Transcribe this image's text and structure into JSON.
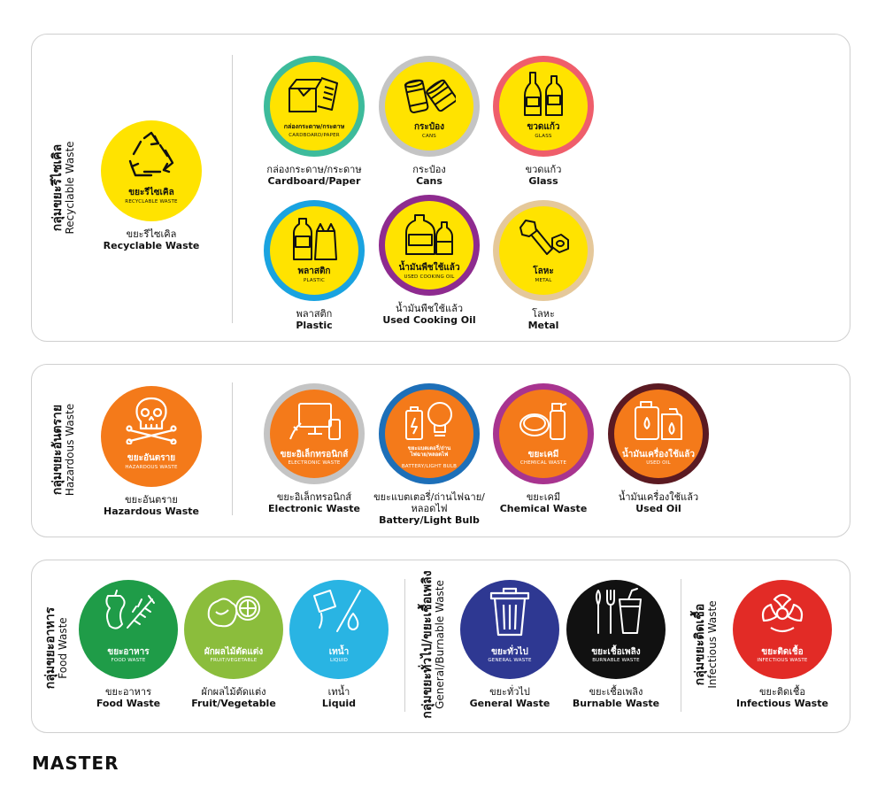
{
  "groups": {
    "recyclable": {
      "label_th": "กลุ่มขยะรีไซเคิล",
      "label_en": "Recyclable Waste"
    },
    "hazardous": {
      "label_th": "กลุ่มขยะอันตราย",
      "label_en": "Hazardous Waste"
    },
    "food": {
      "label_th": "กลุ่มขยะอาหาร",
      "label_en": "Food Waste"
    },
    "general": {
      "label_th": "กลุ่มขยะทั่วไป/ขยะเชื้อเพลิง",
      "label_en": "General/Burnable Waste"
    },
    "infectious": {
      "label_th": "กลุ่มขยะติดเชื้อ",
      "label_en": "Infectious Waste"
    }
  },
  "items": {
    "recyclable": {
      "badge_th": "ขยะรีไซเคิล",
      "badge_en": "RECYCLABLE WASTE",
      "cap_th": "ขยะรีไซเคิล",
      "cap_en": "Recyclable Waste",
      "fill": "#ffe300",
      "ring": "#ffe300",
      "icon": "recycle-icon"
    },
    "cardboard": {
      "badge_th": "กล่องกระดาษ/กระดาษ",
      "badge_en": "CARDBOARD/PAPER",
      "cap_th": "กล่องกระดาษ/กระดาษ",
      "cap_en": "Cardboard/Paper",
      "fill": "#ffe300",
      "ring": "#3dbb9b",
      "icon": "cardboard-box-icon"
    },
    "cans": {
      "badge_th": "กระป๋อง",
      "badge_en": "CANS",
      "cap_th": "กระป๋อง",
      "cap_en": "Cans",
      "fill": "#ffe300",
      "ring": "#c4c4c4",
      "icon": "cans-icon"
    },
    "glass": {
      "badge_th": "ขวดแก้ว",
      "badge_en": "GLASS",
      "cap_th": "ขวดแก้ว",
      "cap_en": "Glass",
      "fill": "#ffe300",
      "ring": "#ef5e6b",
      "icon": "glass-bottle-icon"
    },
    "plastic": {
      "badge_th": "พลาสติก",
      "badge_en": "PLASTIC",
      "cap_th": "พลาสติก",
      "cap_en": "Plastic",
      "fill": "#ffe300",
      "ring": "#1aa3e0",
      "icon": "plastic-bottle-icon"
    },
    "cooking_oil": {
      "badge_th": "น้ำมันพืชใช้แล้ว",
      "badge_en": "USED COOKING OIL",
      "cap_th": "น้ำมันพืชใช้แล้ว",
      "cap_en": "Used Cooking Oil",
      "fill": "#ffe300",
      "ring": "#8e2b8f",
      "icon": "oil-bottle-icon"
    },
    "metal": {
      "badge_th": "โลหะ",
      "badge_en": "METAL",
      "cap_th": "โลหะ",
      "cap_en": "Metal",
      "fill": "#ffe300",
      "ring": "#e5c89a",
      "icon": "bolt-nut-icon"
    },
    "hazardous": {
      "badge_th": "ขยะอันตราย",
      "badge_en": "HAZARDOUS WASTE",
      "cap_th": "ขยะอันตราย",
      "cap_en": "Hazardous Waste",
      "fill": "#f47a1a",
      "ring": "#f47a1a",
      "icon": "skull-crossbones-icon"
    },
    "electronic": {
      "badge_th": "ขยะอิเล็กทรอนิกส์",
      "badge_en": "ELECTRONIC WASTE",
      "cap_th": "ขยะอิเล็กทรอนิกส์",
      "cap_en": "Electronic Waste",
      "fill": "#f47a1a",
      "ring": "#c4c4c4",
      "icon": "electronics-icon"
    },
    "battery": {
      "badge_th": "ขยะแบตเตอรี่/ถ่านไฟฉาย/หลอดไฟ",
      "badge_en": "BATTERY/LIGHT BULB",
      "cap_th": "ขยะแบตเตอรี่/ถ่านไฟฉาย/",
      "cap_th2": "หลอดไฟ",
      "cap_en": "Battery/Light Bulb",
      "fill": "#f47a1a",
      "ring": "#1d6fb8",
      "icon": "battery-bulb-icon"
    },
    "chemical": {
      "badge_th": "ขยะเคมี",
      "badge_en": "CHEMICAL WASTE",
      "cap_th": "ขยะเคมี",
      "cap_en": "Chemical Waste",
      "fill": "#f47a1a",
      "ring": "#a8348f",
      "icon": "chemical-spray-icon"
    },
    "used_oil": {
      "badge_th": "น้ำมันเครื่องใช้แล้ว",
      "badge_en": "USED OIL",
      "cap_th": "น้ำมันเครื่องใช้แล้ว",
      "cap_en": "Used Oil",
      "fill": "#f47a1a",
      "ring": "#5b1a22",
      "icon": "oil-can-icon"
    },
    "food": {
      "badge_th": "ขยะอาหาร",
      "badge_en": "FOOD WASTE",
      "cap_th": "ขยะอาหาร",
      "cap_en": "Food Waste",
      "fill": "#1f9c48",
      "ring": "#1f9c48",
      "icon": "apple-core-fishbone-icon"
    },
    "fruit": {
      "badge_th": "ผักผลไม้ตัดแต่ง",
      "badge_en": "FRUIT/VEGETABLE",
      "cap_th": "ผักผลไม้ตัดแต่ง",
      "cap_en": "Fruit/Vegetable",
      "fill": "#8bbd3c",
      "ring": "#8bbd3c",
      "icon": "fruit-vegetable-icon"
    },
    "liquid": {
      "badge_th": "เทน้ำ",
      "badge_en": "LIQUID",
      "cap_th": "เทน้ำ",
      "cap_en": "Liquid",
      "fill": "#29b4e3",
      "ring": "#29b4e3",
      "icon": "liquid-drop-icon"
    },
    "general": {
      "badge_th": "ขยะทั่วไป",
      "badge_en": "GENERAL WASTE",
      "cap_th": "ขยะทั่วไป",
      "cap_en": "General Waste",
      "fill": "#2e3892",
      "ring": "#2e3892",
      "icon": "trash-bin-icon"
    },
    "burnable": {
      "badge_th": "ขยะเชื้อเพลิง",
      "badge_en": "BURNABLE WASTE",
      "cap_th": "ขยะเชื้อเพลิง",
      "cap_en": "Burnable Waste",
      "fill": "#111111",
      "ring": "#111111",
      "icon": "cutlery-cup-icon"
    },
    "infectious": {
      "badge_th": "ขยะติดเชื้อ",
      "badge_en": "INFECTIOUS WASTE",
      "cap_th": "ขยะติดเชื้อ",
      "cap_en": "Infectious Waste",
      "fill": "#e22b26",
      "ring": "#e22b26",
      "icon": "biohazard-icon"
    }
  },
  "footer": {
    "label": "MASTER"
  }
}
